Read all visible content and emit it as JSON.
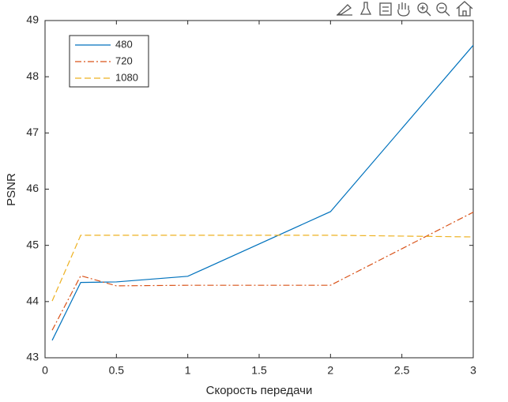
{
  "chart_data": {
    "type": "line",
    "xlabel": "Скорость передачи",
    "ylabel": "PSNR",
    "x": [
      0.05,
      0.25,
      0.5,
      1,
      2,
      3
    ],
    "series": [
      {
        "name": "480",
        "color": "#0072bd",
        "dash": "solid",
        "values": [
          43.31,
          44.34,
          44.35,
          44.45,
          45.6,
          48.56
        ]
      },
      {
        "name": "720",
        "color": "#d95319",
        "dash": "dashdot",
        "values": [
          43.49,
          44.46,
          44.28,
          44.29,
          44.29,
          45.59
        ]
      },
      {
        "name": "1080",
        "color": "#edb120",
        "dash": "dashed",
        "values": [
          44.01,
          45.18,
          45.18,
          45.18,
          45.18,
          45.15
        ]
      }
    ],
    "xlim": [
      0,
      3
    ],
    "xticks": [
      0,
      0.5,
      1,
      1.5,
      2,
      2.5,
      3
    ],
    "ylim": [
      43,
      49
    ],
    "yticks": [
      43,
      44,
      45,
      46,
      47,
      48,
      49
    ],
    "legend": "northwest",
    "grid": false
  }
}
